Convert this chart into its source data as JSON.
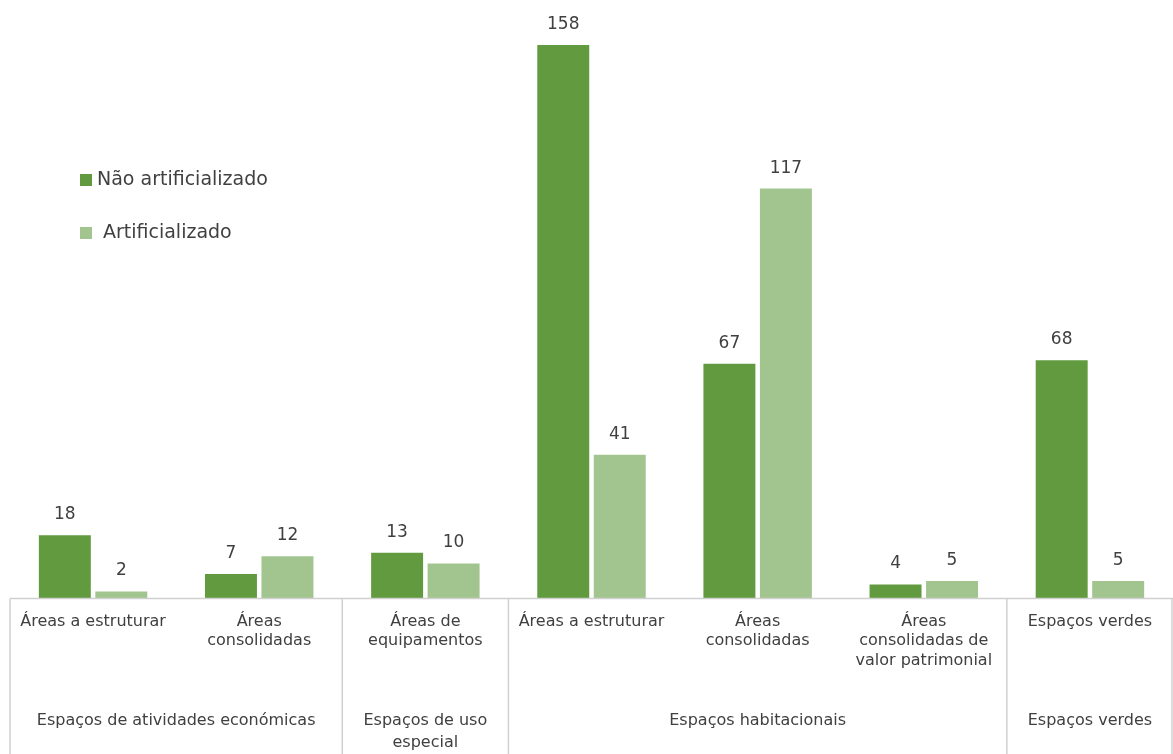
{
  "chart_data": {
    "type": "bar",
    "categories": [
      "Áreas a estruturar",
      "Áreas consolidadas",
      "Áreas de equipamentos",
      "Áreas a estruturar",
      "Áreas consolidadas",
      "Áreas consolidadas de valor patrimonial",
      "Espaços verdes"
    ],
    "series": [
      {
        "name": "Não artificializado",
        "color": "#629b3f",
        "values": [
          18,
          7,
          13,
          158,
          67,
          4,
          68
        ]
      },
      {
        "name": "Artificializado",
        "color": "#a2c58f",
        "values": [
          2,
          12,
          10,
          41,
          117,
          5,
          5
        ]
      }
    ],
    "annotations": [
      "Espaços de atividades económicas",
      "Espaços de uso especial",
      "Espaços habitacionais",
      "Espaços verdes"
    ],
    "data_labels": true,
    "legend": "top left",
    "grid": false
  }
}
